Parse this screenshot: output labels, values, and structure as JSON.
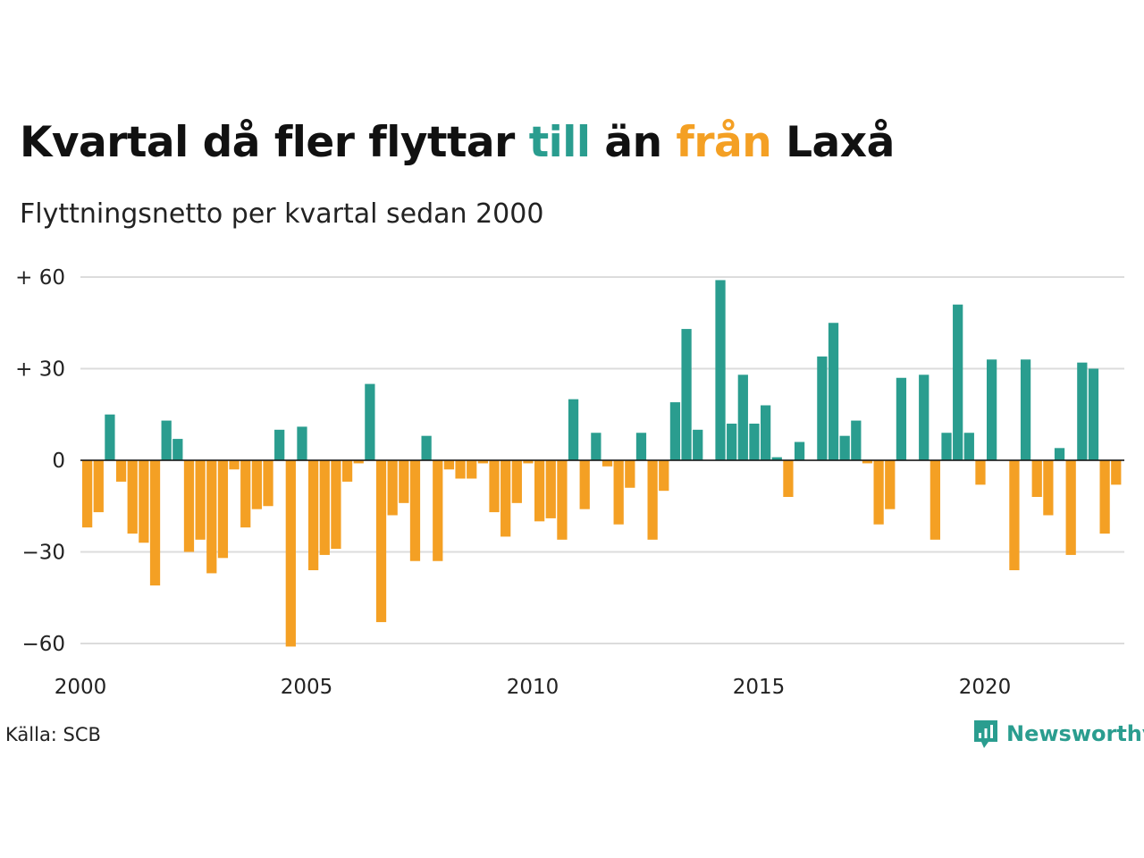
{
  "header": {
    "title_parts": [
      "Kvartal då fler flyttar ",
      "till",
      " än ",
      "från",
      " Laxå"
    ],
    "subtitle": "Flyttningsnetto per kvartal sedan 2000"
  },
  "footer": {
    "source": "Källa: SCB",
    "brand": "Newsworthy",
    "brand_icon": "newsworthy-logo-icon"
  },
  "colors": {
    "positive": "#2a9d8f",
    "negative": "#f4a024",
    "grid": "#dcdcdc",
    "text": "#111111"
  },
  "chart_data": {
    "type": "bar",
    "x_start": 2000,
    "quarters_per_year": 4,
    "ylim": [
      -60,
      60
    ],
    "y_ticks": [
      60,
      30,
      0,
      -30,
      -60
    ],
    "y_tick_labels": [
      "+ 60",
      "+ 30",
      "0",
      "−30",
      "−60"
    ],
    "x_ticks": [
      2000,
      2005,
      2010,
      2015,
      2020
    ],
    "x_tick_labels": [
      "2000",
      "2005",
      "2010",
      "2015",
      "2020"
    ],
    "grid": true,
    "series": [
      {
        "values": [
          -22,
          -17,
          15,
          -7,
          -24,
          -27,
          -41,
          13,
          7,
          -30,
          -26,
          -37,
          -32,
          -3,
          -22,
          -16,
          -15,
          10,
          -61,
          11,
          -36,
          -31,
          -29,
          -7,
          -1,
          25,
          -53,
          -18,
          -14,
          -33,
          8,
          -33,
          -3,
          -6,
          -6,
          -1,
          -17,
          -25,
          -14,
          -1,
          -20,
          -19,
          -26,
          20,
          -16,
          9,
          -2,
          -21,
          -9,
          9,
          -26,
          -10,
          19,
          43,
          10,
          0,
          59,
          12,
          28,
          12,
          18,
          1,
          -12,
          6,
          0,
          34,
          45,
          8,
          13,
          -1,
          -21,
          -16,
          27,
          0,
          28,
          -26,
          9,
          51,
          9,
          -8,
          33,
          0,
          -36,
          33,
          -12,
          -18,
          4,
          -31,
          32,
          30,
          -24,
          -8
        ]
      }
    ]
  }
}
